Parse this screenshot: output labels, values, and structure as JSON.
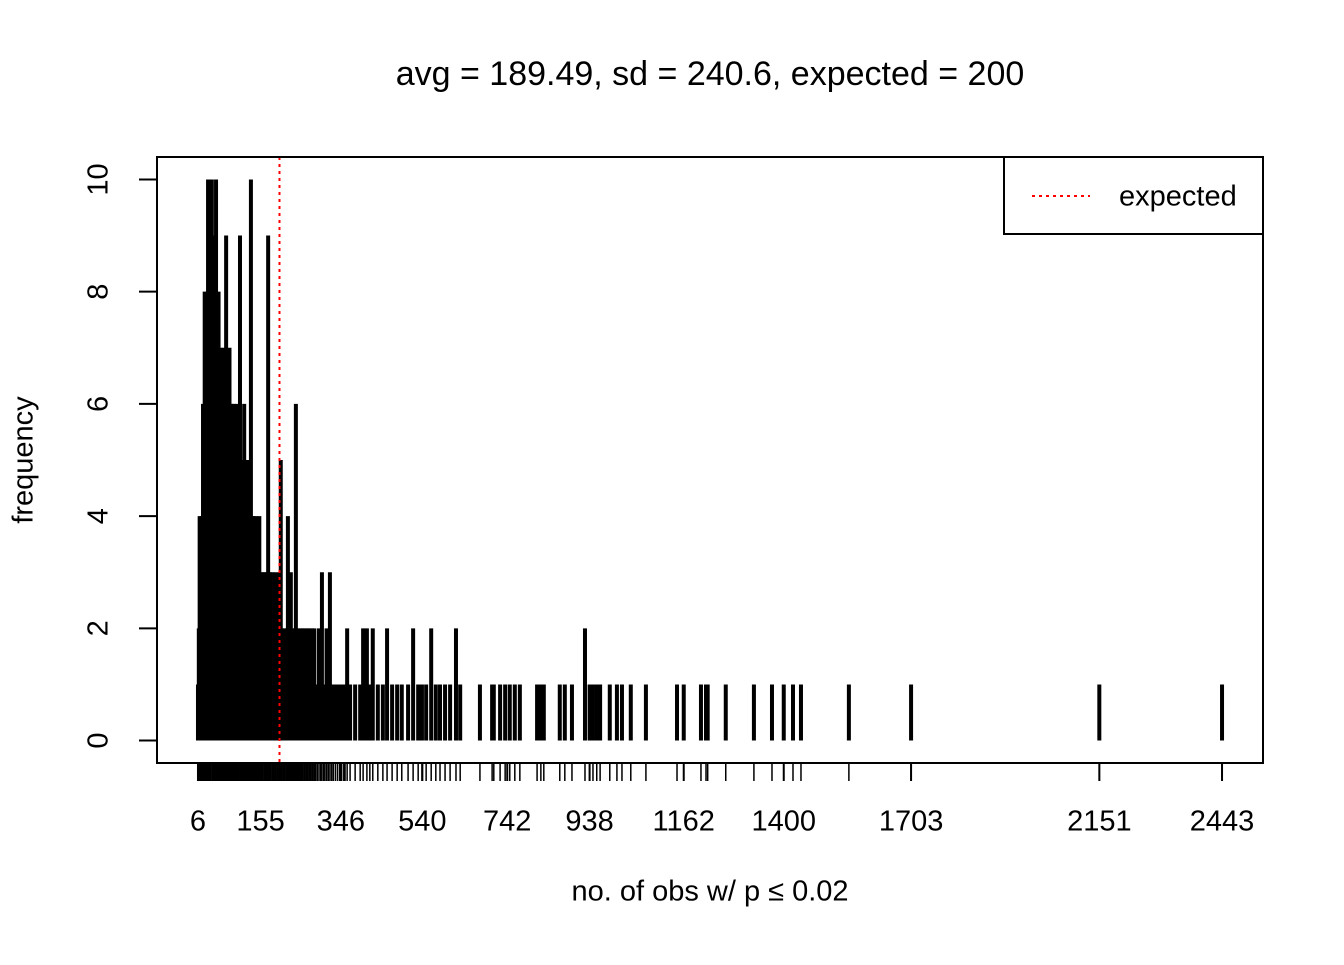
{
  "chart_data": {
    "type": "spike",
    "title": "avg = 189.49, sd = 240.6, expected = 200",
    "x_label": "no. of obs w/ p ≤ 0.02",
    "y_label": "frequency",
    "color": "#000000",
    "x": [
      6,
      8,
      10,
      12,
      14,
      16,
      18,
      20,
      22,
      24,
      26,
      28,
      30,
      32,
      34,
      36,
      39,
      41,
      43,
      45,
      47,
      49,
      51,
      53,
      55,
      57,
      59,
      61,
      63,
      65,
      67,
      69,
      71,
      73,
      75,
      77,
      79,
      81,
      83,
      85,
      87,
      89,
      91,
      93,
      95,
      97,
      99,
      101,
      103,
      106,
      108,
      110,
      112,
      114,
      116,
      118,
      120,
      122,
      124,
      126,
      128,
      130,
      132,
      134,
      136,
      138,
      140,
      142,
      144,
      146,
      148,
      150,
      152,
      155,
      158,
      160,
      163,
      165,
      168,
      170,
      173,
      175,
      178,
      180,
      183,
      186,
      188,
      191,
      194,
      197,
      200,
      203,
      206,
      209,
      212,
      215,
      218,
      220,
      223,
      225,
      227,
      230,
      232,
      235,
      237,
      239,
      242,
      244,
      247,
      250,
      252,
      255,
      258,
      260,
      263,
      266,
      268,
      271,
      274,
      277,
      280,
      283,
      286,
      290,
      294,
      298,
      301,
      305,
      308,
      312,
      316,
      320,
      324,
      328,
      333,
      338,
      343,
      348,
      353,
      356,
      361,
      368,
      380,
      392,
      399,
      408,
      415,
      422,
      434,
      446,
      456,
      468,
      480,
      491,
      506,
      518,
      530,
      539,
      549,
      561,
      572,
      582,
      594,
      606,
      620,
      630,
      677,
      706,
      710,
      725,
      737,
      748,
      760,
      772,
      813,
      822,
      829,
      867,
      879,
      896,
      927,
      938,
      946,
      955,
      963,
      986,
      1003,
      1015,
      1036,
      1072,
      1146,
      1162,
      1203,
      1215,
      1219,
      1262,
      1329,
      1372,
      1400,
      1422,
      1441,
      1555,
      1703,
      2151,
      2443
    ],
    "values": [
      1,
      2,
      4,
      3,
      2,
      4,
      6,
      5,
      8,
      6,
      7,
      8,
      10,
      7,
      8,
      6,
      10,
      7,
      8,
      6,
      9,
      10,
      7,
      5,
      8,
      6,
      7,
      5,
      6,
      4,
      7,
      5,
      6,
      9,
      5,
      6,
      4,
      7,
      5,
      6,
      3,
      5,
      6,
      4,
      5,
      3,
      6,
      4,
      5,
      9,
      4,
      3,
      5,
      4,
      6,
      3,
      4,
      5,
      3,
      4,
      3,
      5,
      10,
      4,
      3,
      4,
      3,
      2,
      4,
      3,
      2,
      3,
      4,
      3,
      2,
      3,
      2,
      3,
      2,
      3,
      9,
      2,
      3,
      2,
      3,
      1,
      2,
      3,
      1,
      2,
      3,
      5,
      2,
      1,
      2,
      1,
      2,
      4,
      1,
      2,
      3,
      1,
      2,
      1,
      2,
      6,
      1,
      2,
      1,
      2,
      1,
      2,
      1,
      2,
      1,
      2,
      1,
      2,
      1,
      2,
      1,
      2,
      1,
      1,
      2,
      1,
      3,
      1,
      1,
      2,
      1,
      3,
      1,
      1,
      1,
      1,
      1,
      1,
      1,
      1,
      2,
      1,
      1,
      1,
      2,
      2,
      1,
      2,
      1,
      1,
      2,
      1,
      1,
      1,
      1,
      2,
      1,
      1,
      1,
      2,
      1,
      1,
      1,
      1,
      2,
      1,
      1,
      1,
      1,
      1,
      1,
      1,
      1,
      1,
      1,
      1,
      1,
      1,
      1,
      1,
      2,
      1,
      1,
      1,
      1,
      1,
      1,
      1,
      1,
      1,
      1,
      1,
      1,
      1,
      1,
      1,
      1,
      1,
      1,
      1,
      1,
      1,
      1,
      1,
      1
    ],
    "xlim": [
      -91.5,
      2540.5
    ],
    "xticks": [
      6,
      155,
      346,
      540,
      742,
      938,
      1162,
      1400,
      1703,
      2151,
      2443
    ],
    "ylim": [
      -0.4,
      10.4
    ],
    "yticks": [
      0,
      2,
      4,
      6,
      8,
      10
    ],
    "reference_line": {
      "value": 200,
      "name": "expected",
      "color": "#ff0000"
    },
    "legend": "top-right"
  }
}
